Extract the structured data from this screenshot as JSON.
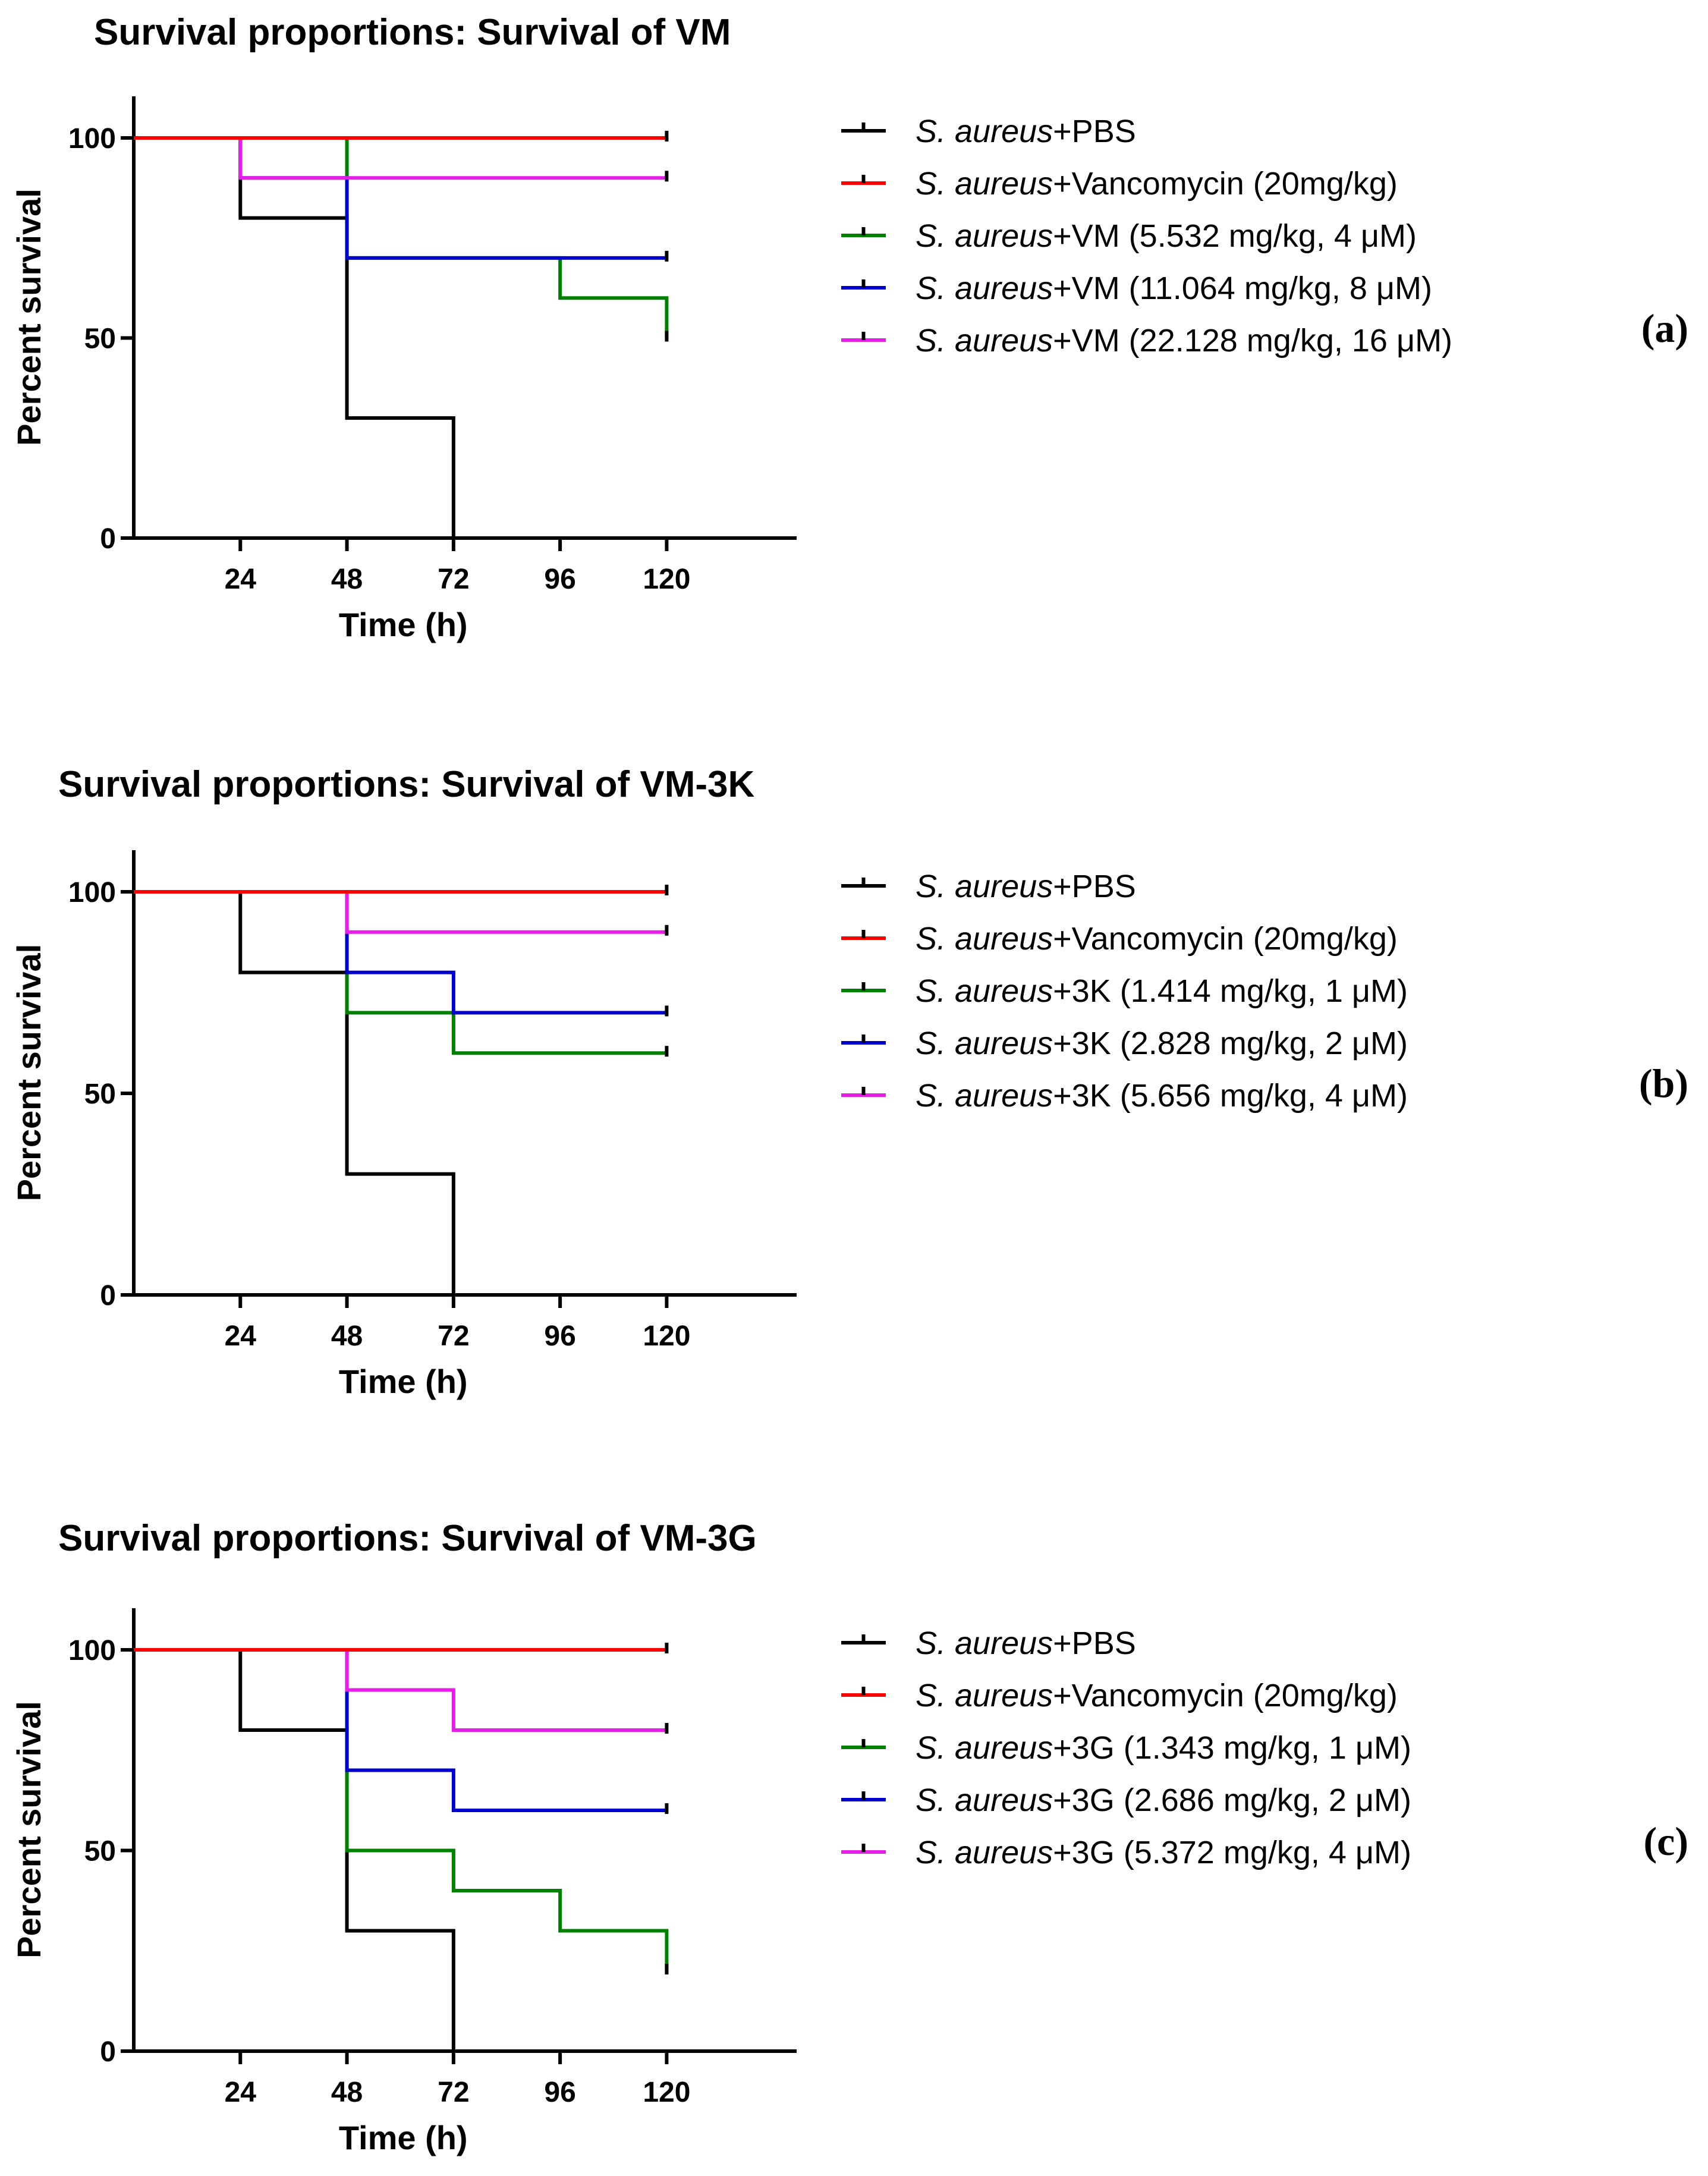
{
  "chart_data": [
    {
      "type": "line",
      "step": true,
      "title": "Survival proportions: Survival of VM",
      "xlabel": "Time (h)",
      "ylabel": "Percent survival",
      "panel_label": "(a)",
      "x_ticks": [
        "24",
        "48",
        "72",
        "96",
        "120"
      ],
      "y_ticks": [
        "0",
        "50",
        "100"
      ],
      "xlim": [
        0,
        144
      ],
      "ylim": [
        0,
        110
      ],
      "legend_position": "right",
      "series": [
        {
          "italic": "S. aureus",
          "rest": "+PBS",
          "color": "#000000",
          "x": [
            0,
            24,
            48,
            72
          ],
          "y": [
            100,
            80,
            30,
            0
          ]
        },
        {
          "italic": "S. aureus",
          "rest": "+Vancomycin (20mg/kg)",
          "color": "#ff0000",
          "x": [
            0,
            120
          ],
          "y": [
            100,
            100
          ]
        },
        {
          "italic": "S. aureus",
          "rest": "+VM (5.532 mg/kg, 4 μM)",
          "color": "#008000",
          "x": [
            0,
            48,
            96,
            120
          ],
          "y": [
            100,
            70,
            60,
            50
          ]
        },
        {
          "italic": "S. aureus",
          "rest": "+VM (11.064 mg/kg, 8 μM)",
          "color": "#0000cc",
          "x": [
            0,
            24,
            48,
            120
          ],
          "y": [
            100,
            90,
            70,
            70
          ]
        },
        {
          "italic": "S. aureus",
          "rest": "+VM (22.128 mg/kg, 16 μM)",
          "color": "#e61ee6",
          "x": [
            0,
            24,
            120
          ],
          "y": [
            100,
            90,
            90
          ]
        }
      ]
    },
    {
      "type": "line",
      "step": true,
      "title": "Survival proportions: Survival of VM-3K",
      "xlabel": "Time (h)",
      "ylabel": "Percent survival",
      "panel_label": "(b)",
      "x_ticks": [
        "24",
        "48",
        "72",
        "96",
        "120"
      ],
      "y_ticks": [
        "0",
        "50",
        "100"
      ],
      "xlim": [
        0,
        144
      ],
      "ylim": [
        0,
        110
      ],
      "legend_position": "right",
      "series": [
        {
          "italic": "S. aureus",
          "rest": "+PBS",
          "color": "#000000",
          "x": [
            0,
            24,
            48,
            72
          ],
          "y": [
            100,
            80,
            30,
            0
          ]
        },
        {
          "italic": "S. aureus",
          "rest": "+Vancomycin (20mg/kg)",
          "color": "#ff0000",
          "x": [
            0,
            120
          ],
          "y": [
            100,
            100
          ]
        },
        {
          "italic": "S. aureus",
          "rest": "+3K (1.414 mg/kg, 1 μM)",
          "color": "#008000",
          "x": [
            0,
            48,
            72,
            120
          ],
          "y": [
            100,
            70,
            60,
            60
          ]
        },
        {
          "italic": "S. aureus",
          "rest": "+3K (2.828 mg/kg, 2 μM)",
          "color": "#0000cc",
          "x": [
            0,
            48,
            72,
            120
          ],
          "y": [
            100,
            80,
            70,
            70
          ]
        },
        {
          "italic": "S. aureus",
          "rest": "+3K (5.656 mg/kg, 4 μM)",
          "color": "#e61ee6",
          "x": [
            0,
            48,
            120
          ],
          "y": [
            100,
            90,
            90
          ]
        }
      ]
    },
    {
      "type": "line",
      "step": true,
      "title": "Survival proportions: Survival of VM-3G",
      "xlabel": "Time (h)",
      "ylabel": "Percent survival",
      "panel_label": "(c)",
      "x_ticks": [
        "24",
        "48",
        "72",
        "96",
        "120"
      ],
      "y_ticks": [
        "0",
        "50",
        "100"
      ],
      "xlim": [
        0,
        144
      ],
      "ylim": [
        0,
        110
      ],
      "legend_position": "right",
      "series": [
        {
          "italic": "S. aureus",
          "rest": "+PBS",
          "color": "#000000",
          "x": [
            0,
            24,
            48,
            72
          ],
          "y": [
            100,
            80,
            30,
            0
          ]
        },
        {
          "italic": "S. aureus",
          "rest": "+Vancomycin (20mg/kg)",
          "color": "#ff0000",
          "x": [
            0,
            120
          ],
          "y": [
            100,
            100
          ]
        },
        {
          "italic": "S. aureus",
          "rest": "+3G (1.343 mg/kg, 1 μM)",
          "color": "#008000",
          "x": [
            0,
            48,
            72,
            96,
            120
          ],
          "y": [
            100,
            50,
            40,
            30,
            20
          ]
        },
        {
          "italic": "S. aureus",
          "rest": "+3G (2.686 mg/kg, 2 μM)",
          "color": "#0000cc",
          "x": [
            0,
            48,
            72,
            120
          ],
          "y": [
            100,
            70,
            60,
            60
          ]
        },
        {
          "italic": "S. aureus",
          "rest": "+3G (5.372 mg/kg, 4 μM)",
          "color": "#e61ee6",
          "x": [
            0,
            48,
            72,
            120
          ],
          "y": [
            100,
            90,
            80,
            80
          ]
        }
      ]
    }
  ]
}
